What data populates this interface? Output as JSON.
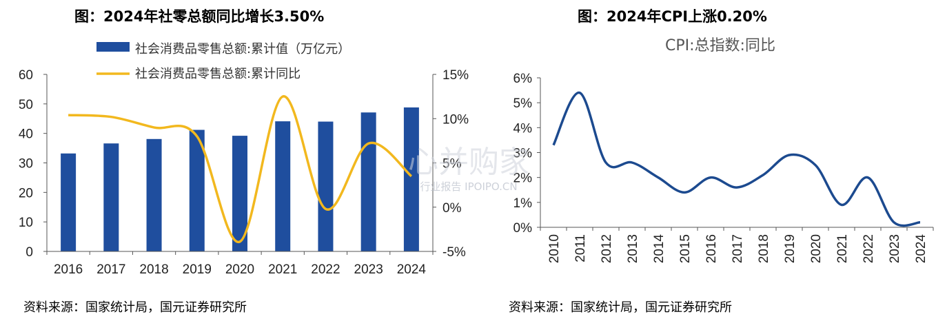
{
  "left_panel": {
    "title": "图：2024年社零总额同比增长3.50%",
    "source": "资料来源：国家统计局，国元证券研究所"
  },
  "right_panel": {
    "title": "图：2024年CPI上涨0.20%",
    "source": "资料来源：国家统计局，国元证券研究所"
  },
  "watermark": {
    "main": "心并购家",
    "sub": "行业报告 IPOIPO.CN"
  },
  "colors": {
    "bar": "#1f4e9e",
    "retail_line": "#f2b81e",
    "cpi_line": "#1c4a8f",
    "axis": "#555555"
  },
  "chart_data": [
    {
      "type": "bar",
      "title": "",
      "categories": [
        "2016",
        "2017",
        "2018",
        "2019",
        "2020",
        "2021",
        "2022",
        "2023",
        "2024"
      ],
      "series": [
        {
          "name": "社会消费品零售总额:累计值（万亿元）",
          "type": "bar",
          "axis": "left",
          "values": [
            33.2,
            36.6,
            38.1,
            41.2,
            39.2,
            44.1,
            44.0,
            47.1,
            48.8
          ]
        },
        {
          "name": "社会消费品零售总额:累计同比",
          "type": "line",
          "axis": "right",
          "smooth": true,
          "values": [
            10.4,
            10.2,
            9.0,
            8.0,
            -3.9,
            12.5,
            -0.2,
            7.2,
            3.5
          ]
        }
      ],
      "y_left": {
        "range": [
          0,
          60
        ],
        "ticks": [
          "0",
          "10",
          "20",
          "30",
          "40",
          "50",
          "60"
        ]
      },
      "y_right": {
        "range": [
          -5,
          15
        ],
        "ticks": [
          "-5%",
          "0%",
          "5%",
          "10%",
          "15%"
        ]
      },
      "legend": "top-center",
      "grid": false
    },
    {
      "type": "line",
      "title": "CPI:总指数:同比",
      "categories": [
        "2010",
        "2011",
        "2012",
        "2013",
        "2014",
        "2015",
        "2016",
        "2017",
        "2018",
        "2019",
        "2020",
        "2021",
        "2022",
        "2023",
        "2024"
      ],
      "series": [
        {
          "name": "CPI:总指数:同比",
          "smooth": true,
          "values": [
            3.3,
            5.4,
            2.6,
            2.6,
            2.0,
            1.4,
            2.0,
            1.6,
            2.1,
            2.9,
            2.5,
            0.9,
            2.0,
            0.2,
            0.2
          ]
        }
      ],
      "y": {
        "range": [
          0,
          6
        ],
        "ticks": [
          "0%",
          "1%",
          "2%",
          "3%",
          "4%",
          "5%",
          "6%"
        ]
      },
      "legend": "none",
      "grid": false
    }
  ]
}
